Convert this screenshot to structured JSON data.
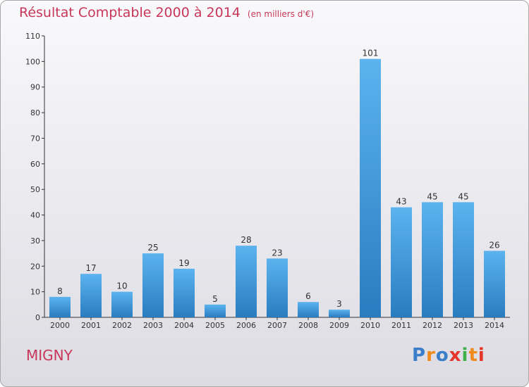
{
  "header": {
    "title": "Résultat Comptable 2000 à 2014",
    "unit": "(en milliers d'€)"
  },
  "footer": {
    "town": "MIGNY",
    "logo": [
      "P",
      "r",
      "o",
      "x",
      "i",
      "t",
      "i"
    ]
  },
  "colors": {
    "bar": "#3a8fd6",
    "title": "#c8365a"
  },
  "chart_data": {
    "type": "bar",
    "title": "Résultat Comptable 2000 à 2014",
    "categories": [
      "2000",
      "2001",
      "2002",
      "2003",
      "2004",
      "2005",
      "2006",
      "2007",
      "2008",
      "2009",
      "2010",
      "2011",
      "2012",
      "2013",
      "2014"
    ],
    "values": [
      8,
      17,
      10,
      25,
      19,
      5,
      28,
      23,
      6,
      3,
      101,
      43,
      45,
      45,
      26
    ],
    "ylim": [
      0,
      110
    ],
    "yticks": [
      0,
      10,
      20,
      30,
      40,
      50,
      60,
      70,
      80,
      90,
      100,
      110
    ],
    "grid": false,
    "legend": "none"
  }
}
